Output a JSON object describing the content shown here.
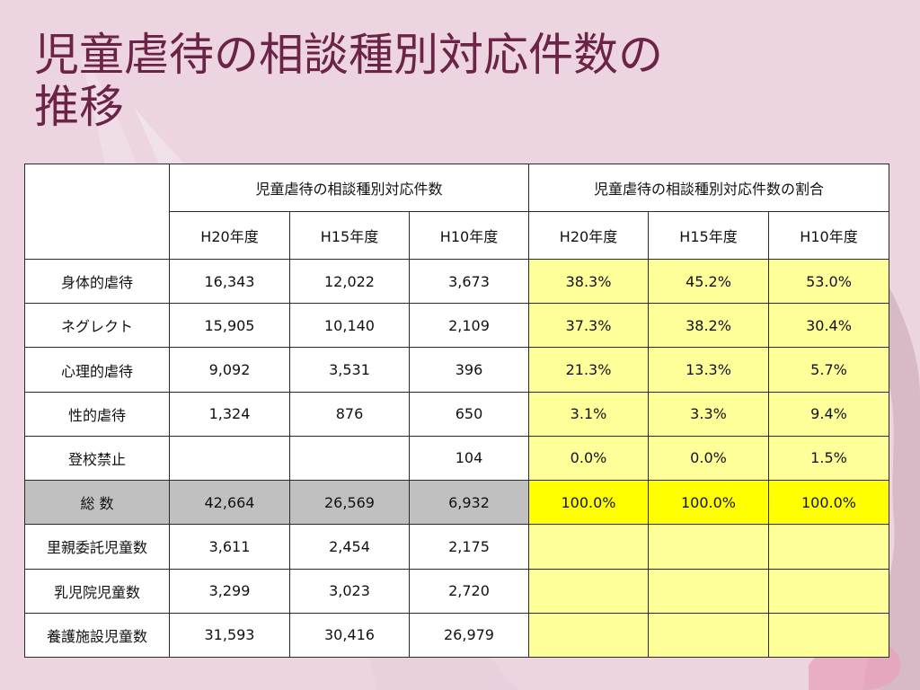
{
  "slide": {
    "title_lines": [
      "児童虐待の相談種別対応件数の",
      "推移"
    ]
  },
  "table": {
    "group_headers": [
      "児童虐待の相談種別対応件数",
      "児童虐待の相談種別対応件数の割合"
    ],
    "year_headers": [
      "H20年度",
      "H15年度",
      "H10年度",
      "H20年度",
      "H15年度",
      "H10年度"
    ],
    "rows": [
      {
        "label": "身体的虐待",
        "counts": [
          "16,343",
          "12,022",
          "3,673"
        ],
        "ratios": [
          "38.3%",
          "45.2%",
          "53.0%"
        ]
      },
      {
        "label": "ネグレクト",
        "counts": [
          "15,905",
          "10,140",
          "2,109"
        ],
        "ratios": [
          "37.3%",
          "38.2%",
          "30.4%"
        ]
      },
      {
        "label": "心理的虐待",
        "counts": [
          "9,092",
          "3,531",
          "396"
        ],
        "ratios": [
          "21.3%",
          "13.3%",
          "5.7%"
        ]
      },
      {
        "label": "性的虐待",
        "counts": [
          "1,324",
          "876",
          "650"
        ],
        "ratios": [
          "3.1%",
          "3.3%",
          "9.4%"
        ]
      },
      {
        "label": "登校禁止",
        "counts": [
          "",
          "",
          "104"
        ],
        "ratios": [
          "0.0%",
          "0.0%",
          "1.5%"
        ]
      },
      {
        "label": "総 数",
        "counts": [
          "42,664",
          "26,569",
          "6,932"
        ],
        "ratios": [
          "100.0%",
          "100.0%",
          "100.0%"
        ]
      },
      {
        "label": "里親委託児童数",
        "counts": [
          "3,611",
          "2,454",
          "2,175"
        ],
        "ratios": [
          "",
          "",
          ""
        ]
      },
      {
        "label": "乳児院児童数",
        "counts": [
          "3,299",
          "3,023",
          "2,720"
        ],
        "ratios": [
          "",
          "",
          ""
        ]
      },
      {
        "label": "養護施設児童数",
        "counts": [
          "31,593",
          "30,416",
          "26,979"
        ],
        "ratios": [
          "",
          "",
          ""
        ]
      }
    ]
  },
  "colors": {
    "background": "#ecd5e1",
    "title": "#6b2346",
    "ratio_cell": "#ffff99",
    "total_ratio_cell": "#ffff00",
    "total_row": "#c0c0c0"
  }
}
